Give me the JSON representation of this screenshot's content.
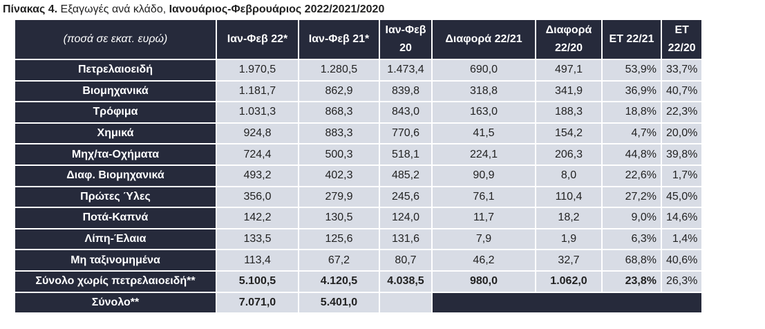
{
  "title": {
    "label": "Πίνακας 4.",
    "text": " Εξαγωγές ανά κλάδο, ",
    "period": "Ιανουάριος-Φεβρουάριος 2022/2021/2020"
  },
  "table": {
    "header": [
      "(ποσά σε εκατ. ευρώ)",
      "Ιαν-Φεβ 22*",
      "Ιαν-Φεβ 21*",
      "Ιαν-Φεβ 20",
      "Διαφορά 22/21",
      "Διαφορά 22/20",
      "ΕΤ 22/21",
      "ΕΤ 22/20"
    ],
    "rows": [
      [
        "Πετρελαιοειδή",
        "1.970,5",
        "1.280,5",
        "1.473,4",
        "690,0",
        "497,1",
        "53,9%",
        "33,7%"
      ],
      [
        "Βιομηχανικά",
        "1.181,7",
        "862,9",
        "839,8",
        "318,8",
        "341,9",
        "36,9%",
        "40,7%"
      ],
      [
        "Τρόφιμα",
        "1.031,3",
        "868,3",
        "843,0",
        "163,0",
        "188,3",
        "18,8%",
        "22,3%"
      ],
      [
        "Χημικά",
        "924,8",
        "883,3",
        "770,6",
        "41,5",
        "154,2",
        "4,7%",
        "20,0%"
      ],
      [
        "Μηχ/τα-Οχήματα",
        "724,4",
        "500,3",
        "518,1",
        "224,1",
        "206,3",
        "44,8%",
        "39,8%"
      ],
      [
        "Διαφ. Βιομηχανικά",
        "493,2",
        "402,3",
        "485,2",
        "90,9",
        "8,0",
        "22,6%",
        "1,7%"
      ],
      [
        "Πρώτες Ύλες",
        "356,0",
        "279,9",
        "245,6",
        "76,1",
        "110,4",
        "27,2%",
        "45,0%"
      ],
      [
        "Ποτά-Καπνά",
        "142,2",
        "130,5",
        "124,0",
        "11,7",
        "18,2",
        "9,0%",
        "14,6%"
      ],
      [
        "Λίπη-Έλαια",
        "133,5",
        "125,6",
        "131,6",
        "7,9",
        "1,9",
        "6,3%",
        "1,4%"
      ],
      [
        "Μη ταξινομημένα",
        "113,4",
        "67,2",
        "80,7",
        "46,2",
        "32,7",
        "68,8%",
        "40,6%"
      ],
      [
        "Σύνολο χωρίς πετρελαιοειδή**",
        "5.100,5",
        "4.120,5",
        "4.038,5",
        "980,0",
        "1.062,0",
        "23,8%",
        "26,3%"
      ],
      [
        "Σύνολο**",
        "7.071,0",
        "5.401,0"
      ]
    ]
  }
}
